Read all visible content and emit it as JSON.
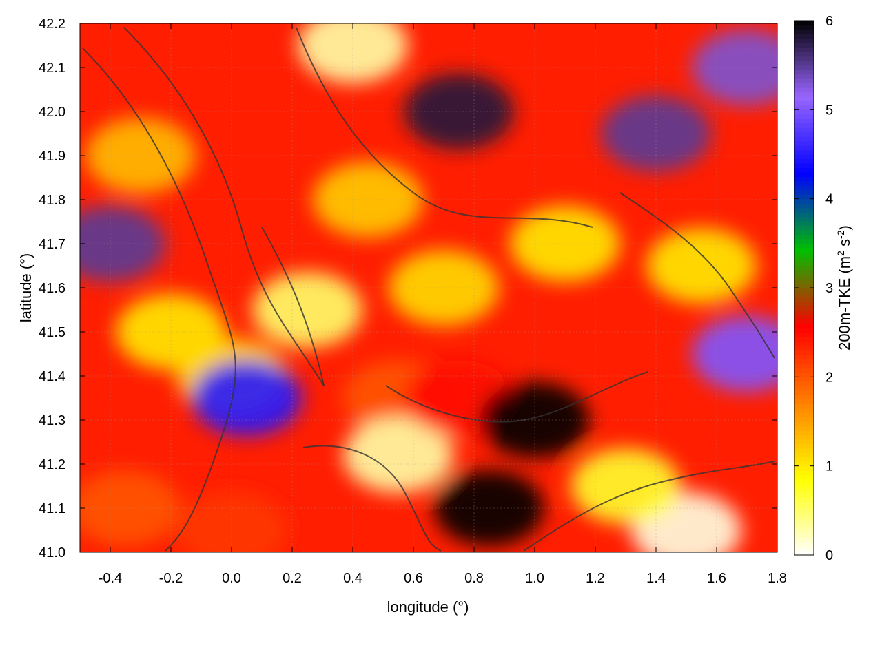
{
  "chart_data": {
    "type": "heatmap",
    "xlabel": "longitude (°)",
    "ylabel": "latitude (°)",
    "colorbar_label_main": "200m-TKE (m",
    "colorbar_label_sup1": "2",
    "colorbar_label_mid": " s",
    "colorbar_label_sup2": "-2",
    "colorbar_label_end": ")",
    "xlim": [
      -0.5,
      1.8
    ],
    "ylim": [
      41.0,
      42.2
    ],
    "zlim": [
      0,
      6
    ],
    "xticks": [
      -0.4,
      -0.2,
      0.0,
      0.2,
      0.4,
      0.6,
      0.8,
      1.0,
      1.2,
      1.4,
      1.6,
      1.8
    ],
    "xtick_labels": [
      "-0.4",
      "-0.2",
      "0.0",
      "0.2",
      "0.4",
      "0.6",
      "0.8",
      "1.0",
      "1.2",
      "1.4",
      "1.6",
      "1.8"
    ],
    "yticks": [
      41.0,
      41.1,
      41.2,
      41.3,
      41.4,
      41.5,
      41.6,
      41.7,
      41.8,
      41.9,
      42.0,
      42.1,
      42.2
    ],
    "ytick_labels": [
      "41.0",
      "41.1",
      "41.2",
      "41.3",
      "41.4",
      "41.5",
      "41.6",
      "41.7",
      "41.8",
      "41.9",
      "42.0",
      "42.1",
      "42.2"
    ],
    "cbticks": [
      0,
      1,
      2,
      3,
      4,
      5,
      6
    ],
    "cbtick_labels": [
      "0",
      "1",
      "2",
      "3",
      "4",
      "5",
      "6"
    ],
    "colormap": [
      "#ffffff",
      "#ffff00",
      "#ff8000",
      "#ff0000",
      "#00c000",
      "#0000ff",
      "#9966ff",
      "#000000"
    ],
    "grid": true,
    "contours": "dark grey terrain contour lines overlaid",
    "field_sketch": [
      {
        "x": -0.3,
        "y": 41.9,
        "v": 1.3
      },
      {
        "x": -0.2,
        "y": 41.5,
        "v": 1.0
      },
      {
        "x": 0.0,
        "y": 41.4,
        "v": 1.1
      },
      {
        "x": -0.4,
        "y": 41.7,
        "v": 5.5
      },
      {
        "x": -0.35,
        "y": 41.1,
        "v": 2.0
      },
      {
        "x": 0.0,
        "y": 41.05,
        "v": 2.2
      },
      {
        "x": 0.25,
        "y": 41.55,
        "v": 0.5
      },
      {
        "x": 0.45,
        "y": 41.8,
        "v": 1.2
      },
      {
        "x": 0.55,
        "y": 41.35,
        "v": 2.0
      },
      {
        "x": 0.55,
        "y": 41.22,
        "v": 0.3
      },
      {
        "x": 0.7,
        "y": 41.6,
        "v": 1.1
      },
      {
        "x": 0.75,
        "y": 41.35,
        "v": 2.5
      },
      {
        "x": 0.85,
        "y": 41.1,
        "v": 6.0
      },
      {
        "x": 1.0,
        "y": 41.3,
        "v": 6.0
      },
      {
        "x": 1.1,
        "y": 41.7,
        "v": 1.0
      },
      {
        "x": 0.75,
        "y": 42.0,
        "v": 5.8
      },
      {
        "x": 1.4,
        "y": 41.95,
        "v": 5.5
      },
      {
        "x": 1.7,
        "y": 42.1,
        "v": 5.3
      },
      {
        "x": 1.55,
        "y": 41.65,
        "v": 1.0
      },
      {
        "x": 1.7,
        "y": 41.45,
        "v": 5.0
      },
      {
        "x": 1.5,
        "y": 41.05,
        "v": 0.1
      },
      {
        "x": 1.3,
        "y": 41.15,
        "v": 0.7
      },
      {
        "x": 0.4,
        "y": 42.15,
        "v": 0.3
      },
      {
        "x": 0.05,
        "y": 41.35,
        "v": 4.5
      }
    ]
  }
}
